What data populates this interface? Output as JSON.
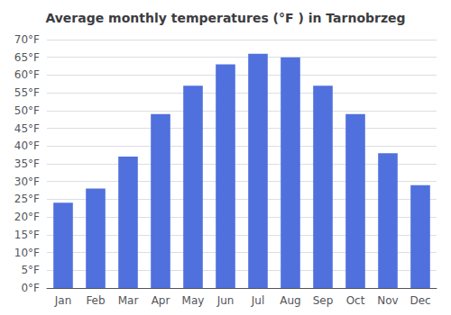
{
  "chart_data": {
    "type": "bar",
    "title": "Average monthly temperatures (°F ) in Tarnobrzeg",
    "categories": [
      "Jan",
      "Feb",
      "Mar",
      "Apr",
      "May",
      "Jun",
      "Jul",
      "Aug",
      "Sep",
      "Oct",
      "Nov",
      "Dec"
    ],
    "values": [
      24,
      28,
      37,
      49,
      57,
      63,
      66,
      65,
      57,
      49,
      38,
      29
    ],
    "ylim": [
      0,
      70
    ],
    "yticks": [
      {
        "value": 0,
        "label": "0°F"
      },
      {
        "value": 5,
        "label": "5°F"
      },
      {
        "value": 10,
        "label": "10°F"
      },
      {
        "value": 15,
        "label": "15°F"
      },
      {
        "value": 20,
        "label": "20°F"
      },
      {
        "value": 25,
        "label": "25°F"
      },
      {
        "value": 30,
        "label": "30°F"
      },
      {
        "value": 35,
        "label": "35°F"
      },
      {
        "value": 40,
        "label": "40°F"
      },
      {
        "value": 45,
        "label": "45°F"
      },
      {
        "value": 50,
        "label": "50°F"
      },
      {
        "value": 55,
        "label": "55°F"
      },
      {
        "value": 60,
        "label": "60°F"
      },
      {
        "value": 65,
        "label": "65°F"
      },
      {
        "value": 70,
        "label": "70°F"
      }
    ],
    "grid": true
  }
}
